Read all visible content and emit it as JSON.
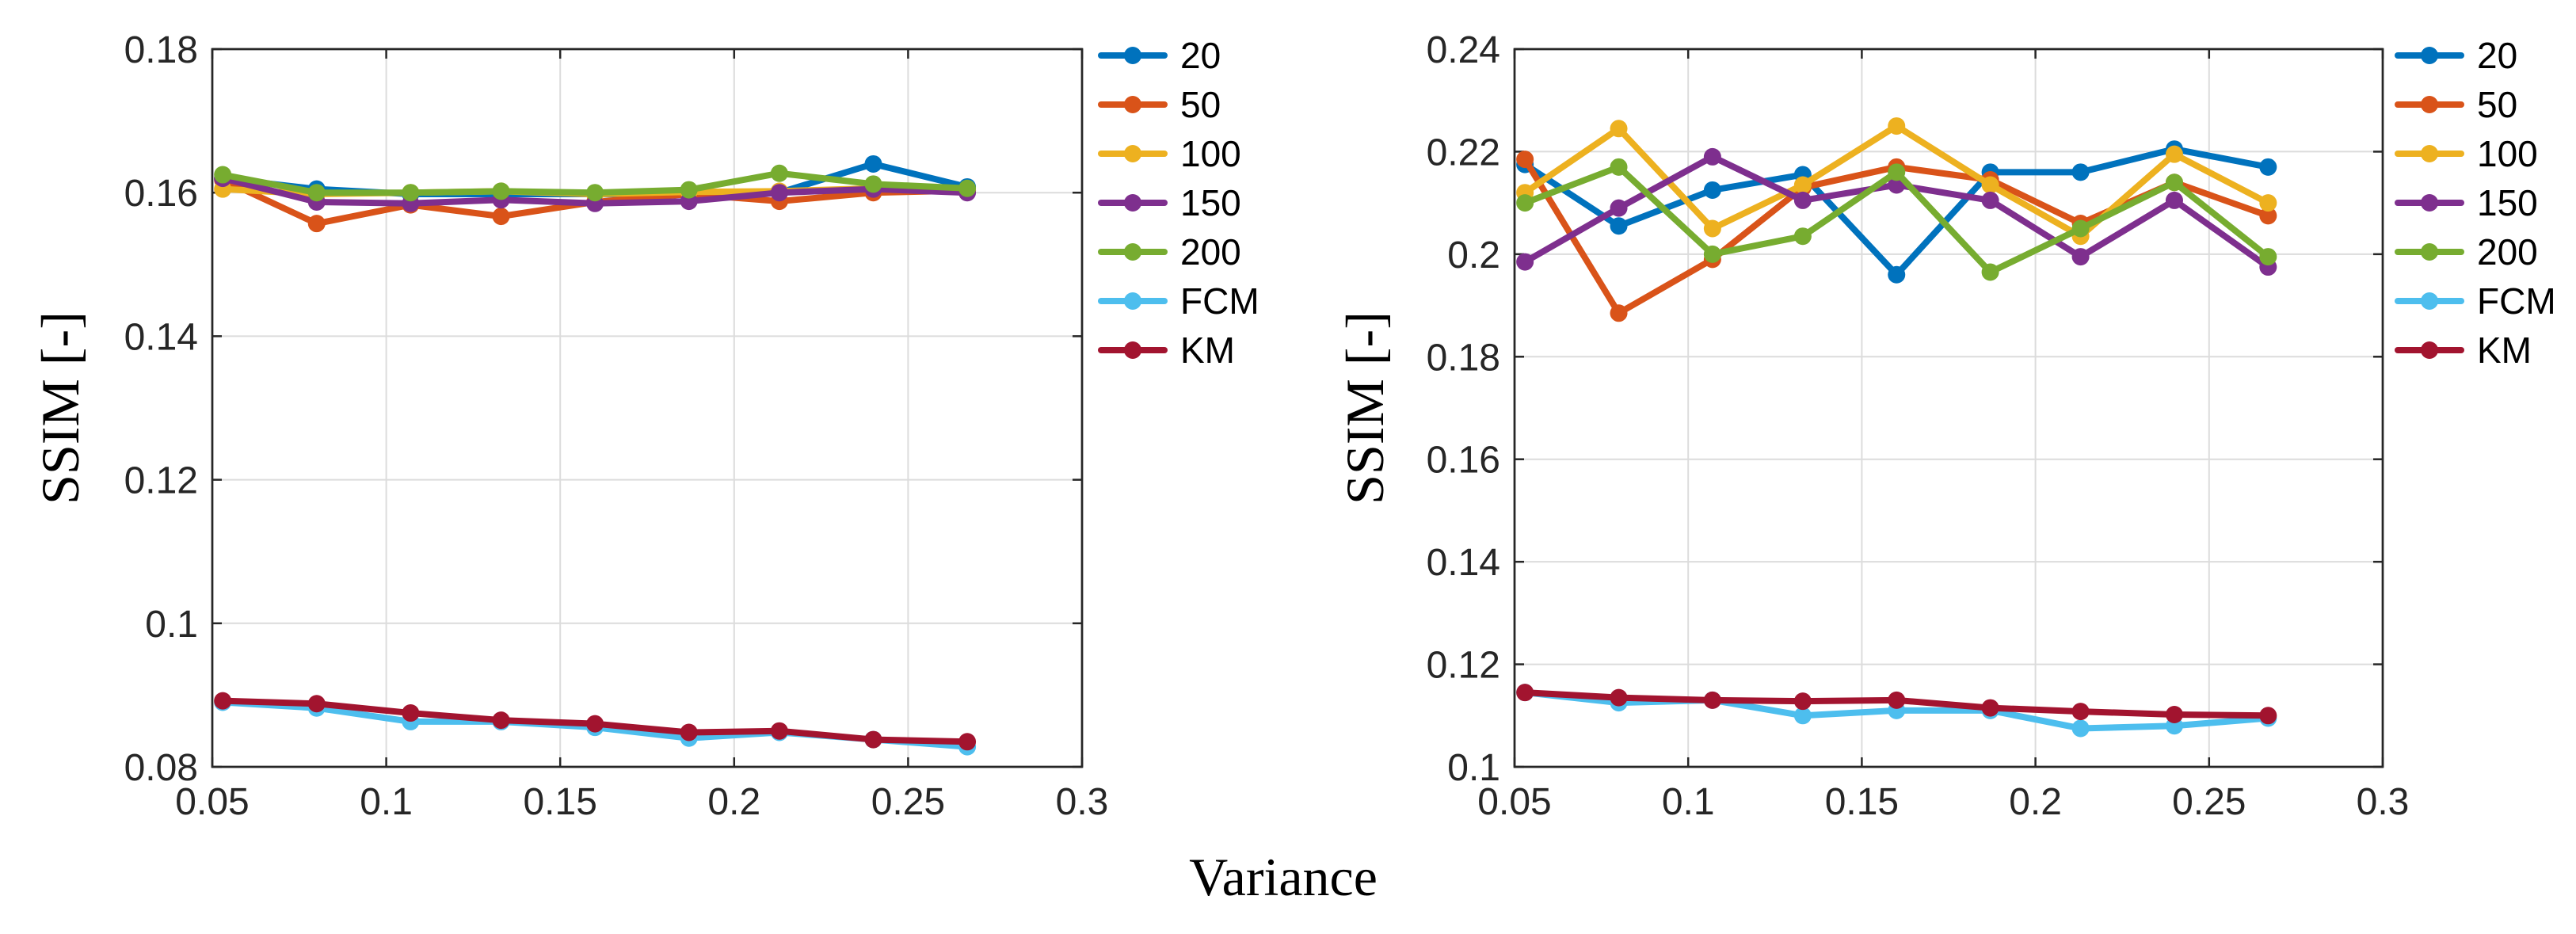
{
  "figure": {
    "xlabel": "Variance"
  },
  "chart_data": [
    {
      "type": "line",
      "ylabel": "SSIM [-]",
      "xlim": [
        0.05,
        0.3
      ],
      "ylim": [
        0.08,
        0.18
      ],
      "xticks": [
        0.05,
        0.1,
        0.15,
        0.2,
        0.25,
        0.3
      ],
      "xtick_labels": [
        "0.05",
        "0.1",
        "0.15",
        "0.2",
        "0.25",
        "0.3"
      ],
      "yticks": [
        0.08,
        0.1,
        0.12,
        0.14,
        0.16,
        0.18
      ],
      "ytick_labels": [
        "0.08",
        "0.1",
        "0.12",
        "0.14",
        "0.16",
        "0.18"
      ],
      "grid": true,
      "legend_position": "outside-right",
      "x": [
        0.053,
        0.08,
        0.107,
        0.133,
        0.16,
        0.187,
        0.213,
        0.24,
        0.267
      ],
      "series": [
        {
          "name": "20",
          "color": "#0072BD",
          "values": [
            0.162,
            0.1605,
            0.1598,
            0.1598,
            0.1598,
            0.1597,
            0.16,
            0.164,
            0.1608
          ]
        },
        {
          "name": "50",
          "color": "#D95319",
          "values": [
            0.1618,
            0.1557,
            0.1583,
            0.1567,
            0.1587,
            0.1598,
            0.1588,
            0.16,
            0.1603
          ]
        },
        {
          "name": "100",
          "color": "#EDB120",
          "values": [
            0.1605,
            0.1598,
            0.16,
            0.1602,
            0.1598,
            0.1601,
            0.1602,
            0.1606,
            0.1603
          ]
        },
        {
          "name": "150",
          "color": "#7E2F8E",
          "values": [
            0.162,
            0.1587,
            0.1585,
            0.159,
            0.1585,
            0.1588,
            0.16,
            0.1605,
            0.16
          ]
        },
        {
          "name": "200",
          "color": "#77AC30",
          "values": [
            0.1625,
            0.16,
            0.16,
            0.1602,
            0.16,
            0.1604,
            0.1627,
            0.1612,
            0.1606
          ]
        },
        {
          "name": "FCM",
          "color": "#4DBEEE",
          "values": [
            0.089,
            0.0882,
            0.0863,
            0.0863,
            0.0855,
            0.084,
            0.0848,
            0.0838,
            0.0828
          ]
        },
        {
          "name": "KM",
          "color": "#A2142F",
          "values": [
            0.0892,
            0.0888,
            0.0875,
            0.0865,
            0.086,
            0.0848,
            0.085,
            0.0838,
            0.0835
          ]
        }
      ]
    },
    {
      "type": "line",
      "ylabel": "SSIM [-]",
      "xlim": [
        0.05,
        0.3
      ],
      "ylim": [
        0.1,
        0.24
      ],
      "xticks": [
        0.05,
        0.1,
        0.15,
        0.2,
        0.25,
        0.3
      ],
      "xtick_labels": [
        "0.05",
        "0.1",
        "0.15",
        "0.2",
        "0.25",
        "0.3"
      ],
      "yticks": [
        0.1,
        0.12,
        0.14,
        0.16,
        0.18,
        0.2,
        0.22,
        0.24
      ],
      "ytick_labels": [
        "0.1",
        "0.12",
        "0.14",
        "0.16",
        "0.18",
        "0.2",
        "0.22",
        "0.24"
      ],
      "grid": true,
      "legend_position": "outside-right",
      "x": [
        0.053,
        0.08,
        0.107,
        0.133,
        0.16,
        0.187,
        0.213,
        0.24,
        0.267
      ],
      "series": [
        {
          "name": "20",
          "color": "#0072BD",
          "values": [
            0.2175,
            0.2055,
            0.2125,
            0.2155,
            0.196,
            0.216,
            0.216,
            0.2205,
            0.217
          ]
        },
        {
          "name": "50",
          "color": "#D95319",
          "values": [
            0.2185,
            0.1885,
            0.199,
            0.213,
            0.217,
            0.2145,
            0.206,
            0.214,
            0.2075
          ]
        },
        {
          "name": "100",
          "color": "#EDB120",
          "values": [
            0.212,
            0.2245,
            0.205,
            0.2135,
            0.225,
            0.2135,
            0.2035,
            0.2195,
            0.21
          ]
        },
        {
          "name": "150",
          "color": "#7E2F8E",
          "values": [
            0.1985,
            0.209,
            0.219,
            0.2105,
            0.2135,
            0.2105,
            0.1995,
            0.2105,
            0.1975
          ]
        },
        {
          "name": "200",
          "color": "#77AC30",
          "values": [
            0.21,
            0.217,
            0.2,
            0.2035,
            0.216,
            0.1965,
            0.205,
            0.214,
            0.1995
          ]
        },
        {
          "name": "FCM",
          "color": "#4DBEEE",
          "values": [
            0.1145,
            0.1125,
            0.113,
            0.11,
            0.111,
            0.111,
            0.1075,
            0.108,
            0.1095
          ]
        },
        {
          "name": "KM",
          "color": "#A2142F",
          "values": [
            0.1145,
            0.1135,
            0.113,
            0.1128,
            0.113,
            0.1115,
            0.1108,
            0.1102,
            0.11
          ]
        }
      ]
    }
  ]
}
